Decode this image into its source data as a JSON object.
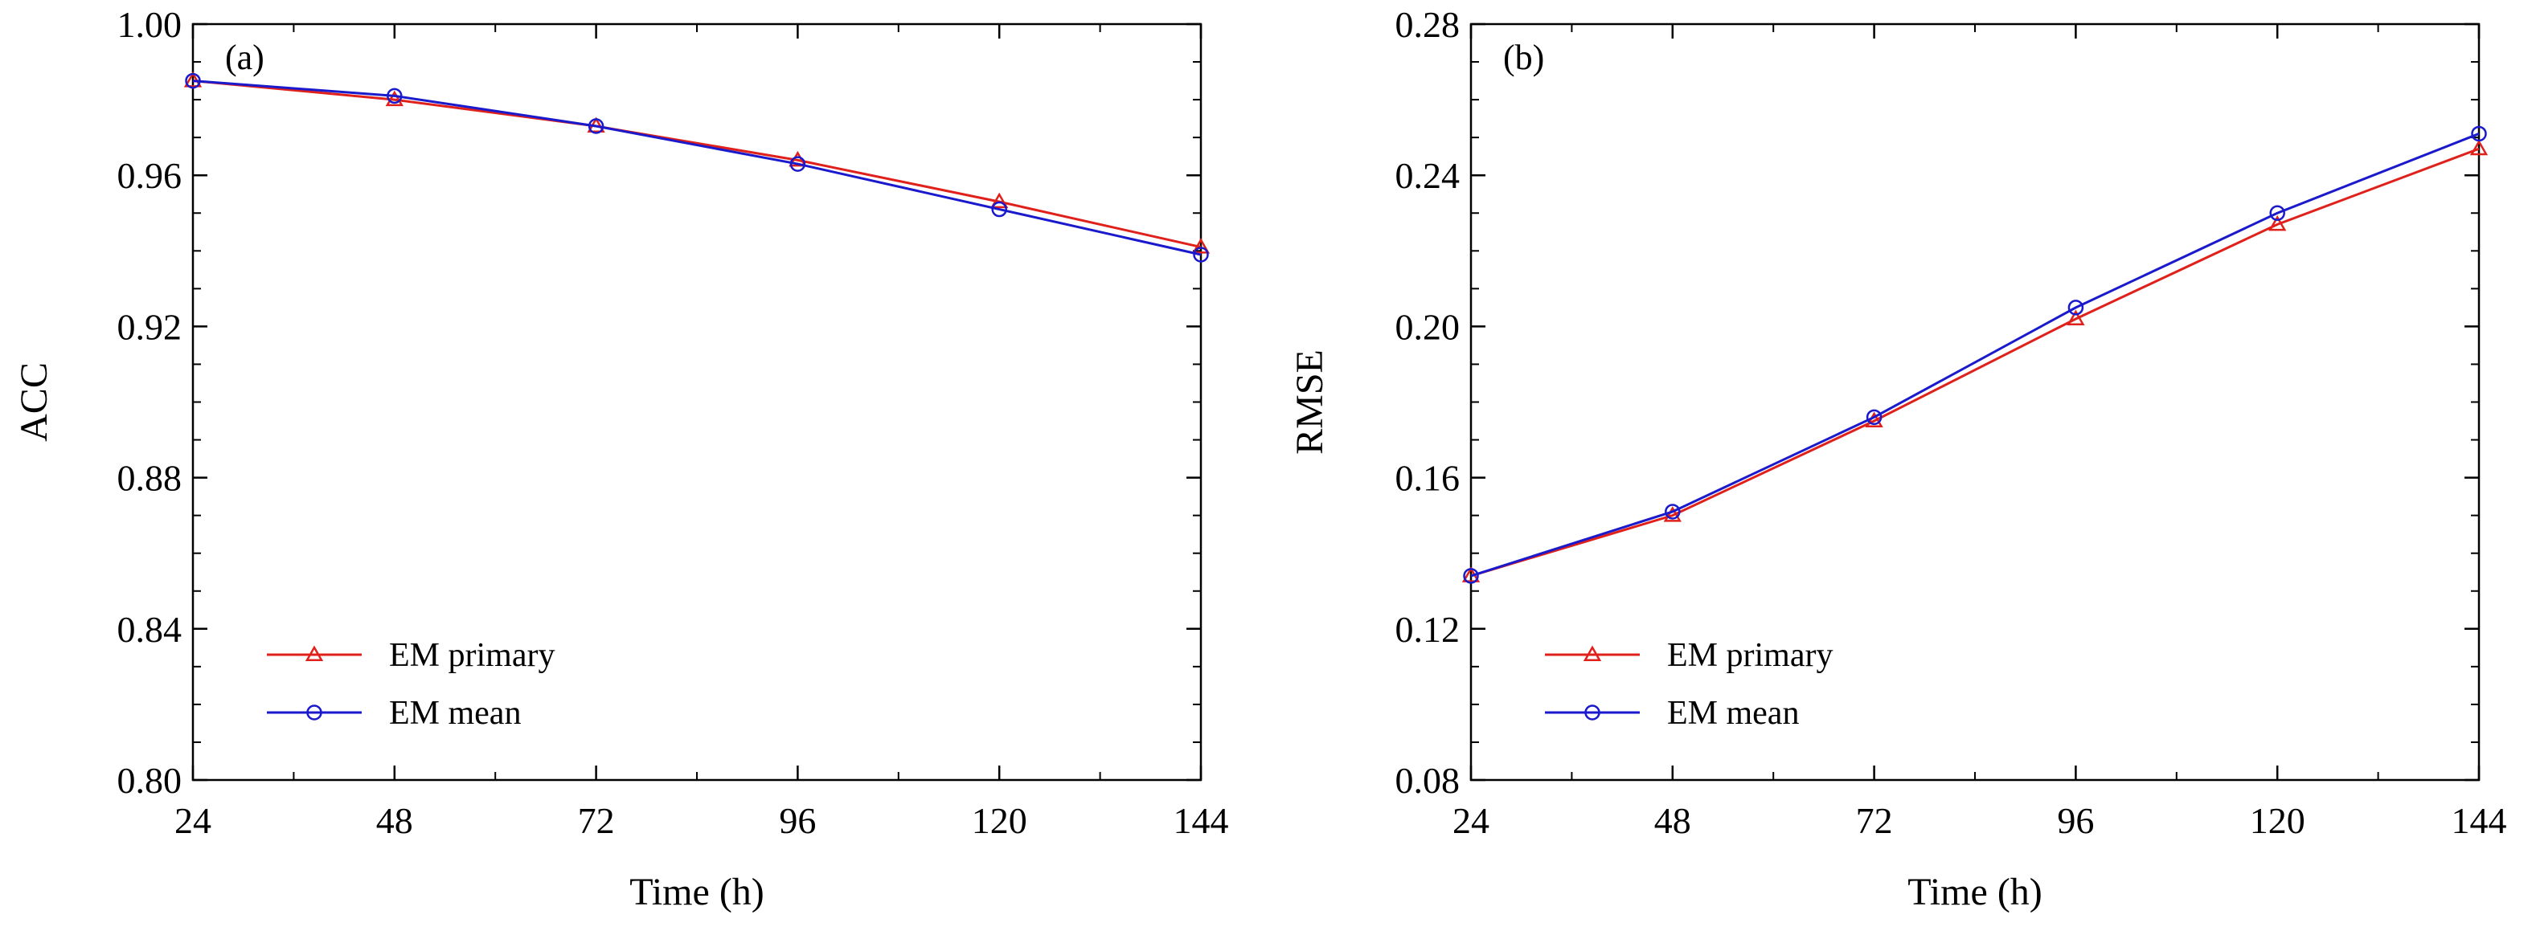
{
  "chart_data": [
    {
      "type": "line",
      "panel_label": "(a)",
      "xlabel": "Time (h)",
      "ylabel": "ACC",
      "x": [
        24,
        48,
        72,
        96,
        120,
        144
      ],
      "xlim": [
        24,
        144
      ],
      "ylim": [
        0.8,
        1.0
      ],
      "xticks": [
        "24",
        "48",
        "72",
        "96",
        "120",
        "144"
      ],
      "yticks": [
        "0.80",
        "0.84",
        "0.88",
        "0.92",
        "0.96",
        "1.00"
      ],
      "grid": false,
      "legend_position": "lower-left",
      "series": [
        {
          "name": "EM primary",
          "marker": "triangle",
          "color": "#e0201a",
          "values": [
            0.985,
            0.98,
            0.973,
            0.964,
            0.953,
            0.941
          ]
        },
        {
          "name": "EM mean",
          "marker": "circle",
          "color": "#1a1acc",
          "values": [
            0.985,
            0.981,
            0.973,
            0.963,
            0.951,
            0.939
          ]
        }
      ]
    },
    {
      "type": "line",
      "panel_label": "(b)",
      "xlabel": "Time (h)",
      "ylabel": "RMSE",
      "x": [
        24,
        48,
        72,
        96,
        120,
        144
      ],
      "xlim": [
        24,
        144
      ],
      "ylim": [
        0.08,
        0.28
      ],
      "xticks": [
        "24",
        "48",
        "72",
        "96",
        "120",
        "144"
      ],
      "yticks": [
        "0.08",
        "0.12",
        "0.16",
        "0.20",
        "0.24",
        "0.28"
      ],
      "grid": false,
      "legend_position": "lower-left",
      "series": [
        {
          "name": "EM primary",
          "marker": "triangle",
          "color": "#e0201a",
          "values": [
            0.134,
            0.15,
            0.175,
            0.202,
            0.227,
            0.247
          ]
        },
        {
          "name": "EM mean",
          "marker": "circle",
          "color": "#1a1acc",
          "values": [
            0.134,
            0.151,
            0.176,
            0.205,
            0.23,
            0.251
          ]
        }
      ]
    }
  ]
}
